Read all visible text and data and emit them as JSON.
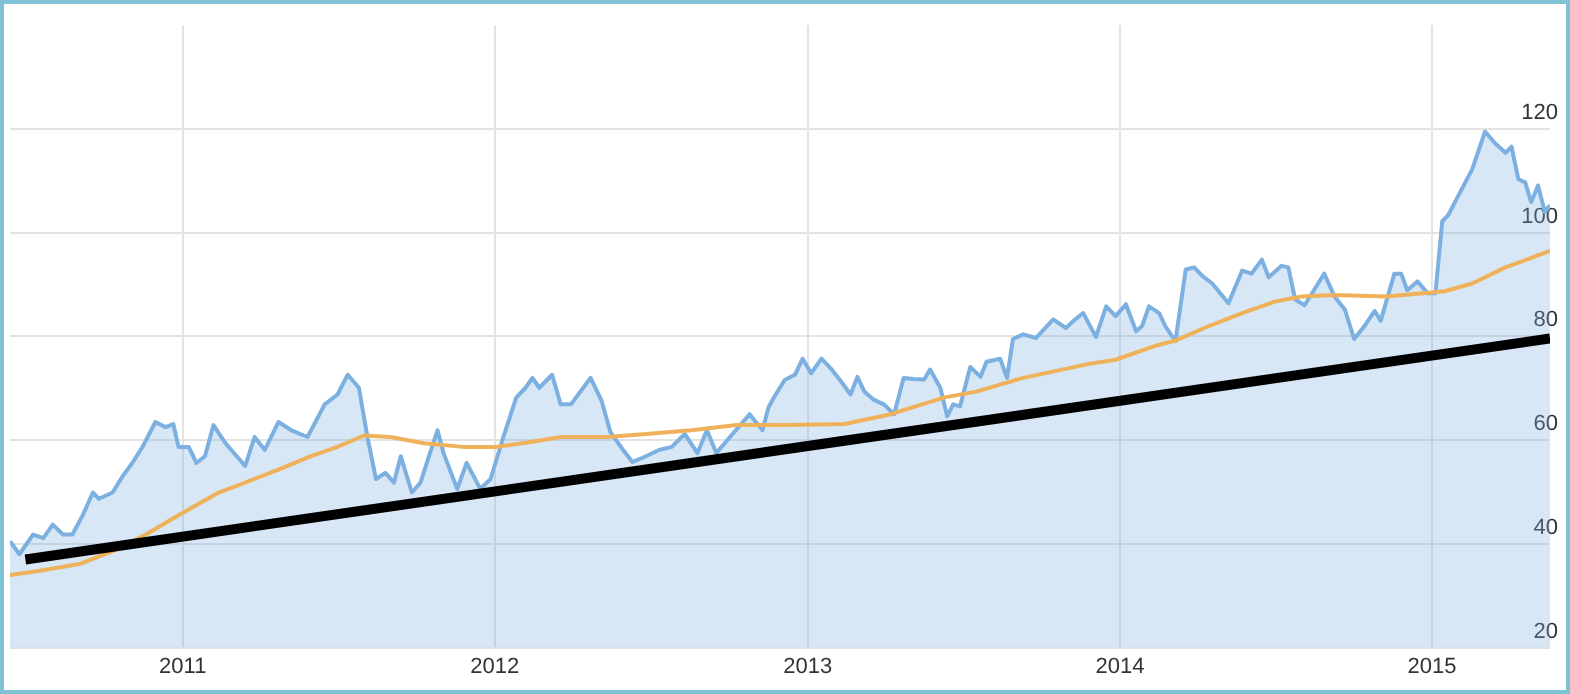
{
  "chart_data": {
    "type": "area",
    "xlim": [
      "2010-06-13",
      "2015-05-19"
    ],
    "xticks": [
      "2011",
      "2012",
      "2013",
      "2014",
      "2015"
    ],
    "ylim": [
      20,
      140
    ],
    "yticks": [
      20,
      40,
      60,
      80,
      100,
      120
    ],
    "grid": true,
    "legend": false,
    "series": [
      {
        "type": "area",
        "color": "#7cb0e0",
        "x": [
          "2010-06-13",
          "2010-06-24",
          "2010-07-10",
          "2010-07-22",
          "2010-08-02",
          "2010-08-14",
          "2010-08-25",
          "2010-09-06",
          "2010-09-18",
          "2010-09-25",
          "2010-10-11",
          "2010-10-23",
          "2010-11-03",
          "2010-11-15",
          "2010-11-30",
          "2010-12-12",
          "2010-12-21",
          "2010-12-27",
          "2011-01-08",
          "2011-01-17",
          "2011-01-27",
          "2011-02-06",
          "2011-02-20",
          "2011-03-15",
          "2011-03-26",
          "2011-04-07",
          "2011-04-23",
          "2011-05-08",
          "2011-05-27",
          "2011-06-16",
          "2011-07-01",
          "2011-07-13",
          "2011-07-26",
          "2011-08-05",
          "2011-08-15",
          "2011-08-26",
          "2011-09-05",
          "2011-09-13",
          "2011-09-26",
          "2011-10-06",
          "2011-10-16",
          "2011-10-26",
          "2011-11-02",
          "2011-11-18",
          "2011-11-29",
          "2011-12-15",
          "2011-12-27",
          "2012-01-11",
          "2012-01-26",
          "2012-02-06",
          "2012-02-14",
          "2012-02-22",
          "2012-03-08",
          "2012-03-18",
          "2012-03-30",
          "2012-04-22",
          "2012-05-05",
          "2012-05-15",
          "2012-05-30",
          "2012-06-10",
          "2012-06-22",
          "2012-07-11",
          "2012-07-26",
          "2012-08-10",
          "2012-08-25",
          "2012-09-05",
          "2012-09-16",
          "2012-10-02",
          "2012-10-25",
          "2012-11-09",
          "2012-11-16",
          "2012-11-23",
          "2012-12-05",
          "2012-12-17",
          "2012-12-26",
          "2013-01-05",
          "2013-01-17",
          "2013-01-28",
          "2013-02-09",
          "2013-02-20",
          "2013-02-28",
          "2013-03-08",
          "2013-03-19",
          "2013-03-31",
          "2013-04-12",
          "2013-04-23",
          "2013-05-05",
          "2013-05-17",
          "2013-05-24",
          "2013-06-05",
          "2013-06-13",
          "2013-06-20",
          "2013-06-28",
          "2013-07-10",
          "2013-07-22",
          "2013-07-29",
          "2013-08-14",
          "2013-08-22",
          "2013-08-29",
          "2013-09-10",
          "2013-09-25",
          "2013-10-15",
          "2013-10-30",
          "2013-11-07",
          "2013-11-19",
          "2013-12-04",
          "2013-12-16",
          "2013-12-27",
          "2014-01-08",
          "2014-01-20",
          "2014-01-27",
          "2014-02-04",
          "2014-02-16",
          "2014-02-23",
          "2014-03-07",
          "2014-03-19",
          "2014-03-29",
          "2014-04-07",
          "2014-04-19",
          "2014-05-08",
          "2014-05-24",
          "2014-06-04",
          "2014-06-16",
          "2014-06-24",
          "2014-07-09",
          "2014-07-17",
          "2014-07-25",
          "2014-08-05",
          "2014-08-17",
          "2014-08-28",
          "2014-09-09",
          "2014-09-21",
          "2014-10-02",
          "2014-10-14",
          "2014-10-26",
          "2014-11-02",
          "2014-11-18",
          "2014-11-26",
          "2014-12-03",
          "2014-12-15",
          "2014-12-27",
          "2015-01-05",
          "2015-01-13",
          "2015-01-20",
          "2015-02-01",
          "2015-02-17",
          "2015-03-04",
          "2015-03-16",
          "2015-03-28",
          "2015-04-04",
          "2015-04-12",
          "2015-04-20",
          "2015-04-27",
          "2015-05-05",
          "2015-05-13",
          "2015-05-19"
        ],
        "values": [
          40.5,
          38.0,
          41.8,
          41.1,
          43.7,
          41.8,
          41.8,
          45.5,
          49.9,
          48.7,
          49.9,
          53.1,
          55.6,
          58.7,
          63.5,
          62.5,
          63.1,
          58.7,
          58.7,
          55.6,
          56.9,
          62.9,
          59.4,
          55.0,
          60.6,
          58.1,
          63.5,
          61.9,
          60.6,
          66.9,
          68.8,
          72.6,
          70.1,
          60.6,
          52.5,
          53.7,
          51.8,
          56.9,
          49.9,
          51.8,
          56.9,
          61.9,
          57.5,
          50.6,
          55.6,
          50.6,
          52.5,
          60.6,
          68.2,
          70.1,
          72.0,
          70.1,
          72.6,
          66.9,
          66.9,
          72.0,
          67.5,
          61.6,
          58.1,
          55.8,
          56.6,
          58.1,
          58.7,
          61.2,
          57.5,
          61.9,
          57.5,
          60.6,
          65.0,
          61.9,
          66.3,
          68.4,
          71.6,
          72.6,
          75.7,
          72.9,
          75.7,
          73.8,
          71.3,
          68.8,
          72.2,
          69.4,
          67.8,
          66.9,
          65.0,
          72.0,
          71.8,
          71.7,
          73.6,
          70.1,
          64.6,
          66.9,
          66.5,
          74.1,
          72.2,
          75.1,
          75.7,
          72.0,
          79.5,
          80.4,
          79.7,
          83.3,
          81.6,
          82.9,
          84.5,
          79.9,
          85.8,
          83.9,
          86.2,
          81.0,
          82.0,
          85.8,
          84.5,
          82.0,
          79.1,
          92.9,
          93.3,
          91.7,
          90.2,
          86.4,
          92.7,
          92.1,
          94.8,
          91.4,
          93.6,
          93.3,
          87.1,
          86.0,
          89.2,
          92.1,
          87.7,
          85.2,
          79.5,
          82.0,
          84.9,
          83.0,
          92.1,
          92.1,
          88.9,
          90.6,
          88.3,
          88.3,
          102.2,
          103.4,
          107.2,
          112.2,
          119.5,
          117.2,
          115.4,
          116.6,
          110.3,
          109.7,
          105.9,
          109.1,
          104.0,
          105.3
        ]
      },
      {
        "type": "line",
        "color": "#efb15a",
        "x": [
          "2010-06-13",
          "2010-07-18",
          "2010-09-02",
          "2010-10-11",
          "2010-11-19",
          "2010-12-27",
          "2011-02-12",
          "2011-03-15",
          "2011-04-23",
          "2011-05-31",
          "2011-07-01",
          "2011-08-01",
          "2011-09-01",
          "2011-10-10",
          "2011-11-25",
          "2012-01-03",
          "2012-02-10",
          "2012-03-19",
          "2012-05-11",
          "2012-06-26",
          "2012-08-18",
          "2012-10-10",
          "2012-12-09",
          "2013-02-13",
          "2013-04-08",
          "2013-06-09",
          "2013-07-18",
          "2013-09-10",
          "2013-11-26",
          "2013-12-27",
          "2014-02-12",
          "2014-03-07",
          "2014-04-15",
          "2014-05-24",
          "2014-07-01",
          "2014-08-01",
          "2014-09-09",
          "2014-11-09",
          "2015-01-16",
          "2015-02-17",
          "2015-03-28",
          "2015-05-19"
        ],
        "values": [
          34.0,
          34.8,
          36.1,
          38.6,
          41.8,
          45.5,
          49.9,
          51.8,
          54.3,
          56.9,
          58.7,
          60.9,
          60.6,
          59.4,
          58.7,
          58.7,
          59.6,
          60.6,
          60.6,
          61.2,
          61.9,
          62.9,
          62.9,
          63.1,
          65.0,
          68.2,
          69.4,
          72.0,
          74.7,
          75.5,
          78.2,
          79.2,
          82.0,
          84.5,
          86.7,
          87.7,
          88.0,
          87.7,
          88.7,
          90.2,
          93.3,
          96.5
        ]
      },
      {
        "type": "line",
        "color": "#000000",
        "x": [
          "2010-07-01",
          "2015-05-19"
        ],
        "values": [
          37.0,
          79.6
        ]
      }
    ]
  }
}
